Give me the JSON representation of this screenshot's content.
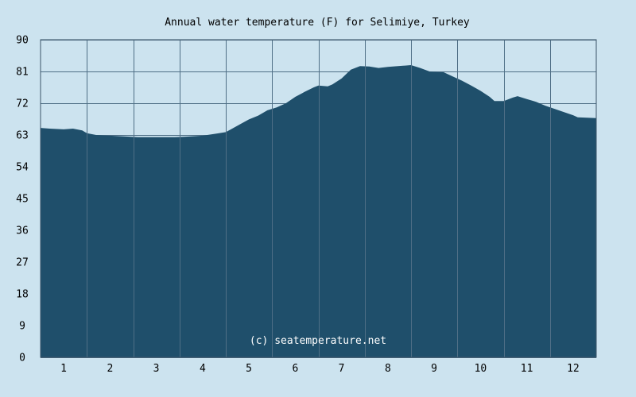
{
  "chart_data": {
    "type": "area",
    "title": "Annual water temperature (F) for Selimiye, Turkey",
    "watermark": "(c) seatemperature.net",
    "xlabel": "",
    "ylabel": "",
    "x_ticks": [
      "1",
      "2",
      "3",
      "4",
      "5",
      "6",
      "7",
      "8",
      "9",
      "10",
      "11",
      "12"
    ],
    "y_ticks": [
      "0",
      "9",
      "18",
      "27",
      "36",
      "45",
      "54",
      "63",
      "72",
      "81",
      "90"
    ],
    "xlim": [
      0.5,
      12.5
    ],
    "ylim": [
      0,
      90
    ],
    "grid": true,
    "legend": "none",
    "series": [
      {
        "x": [
          0.5,
          0.7,
          1.0,
          1.2,
          1.4,
          1.5,
          1.7,
          2.0,
          2.3,
          2.6,
          3.0,
          3.4,
          3.6,
          4.0,
          4.3,
          4.5,
          4.6,
          4.8,
          5.0,
          5.2,
          5.4,
          5.6,
          5.8,
          6.0,
          6.2,
          6.4,
          6.5,
          6.7,
          6.8,
          7.0,
          7.2,
          7.4,
          7.6,
          7.8,
          8.0,
          8.3,
          8.5,
          8.7,
          8.9,
          9.0,
          9.2,
          9.4,
          9.6,
          9.8,
          10.0,
          10.2,
          10.3,
          10.5,
          10.7,
          10.8,
          11.0,
          11.2,
          11.4,
          11.6,
          11.8,
          12.0,
          12.1,
          12.3,
          12.5
        ],
        "values": [
          65.0,
          64.8,
          64.6,
          64.8,
          64.3,
          63.5,
          63.0,
          62.8,
          62.6,
          62.4,
          62.4,
          62.4,
          62.5,
          62.8,
          63.4,
          63.8,
          64.5,
          66.0,
          67.4,
          68.5,
          70.0,
          70.8,
          72.0,
          73.8,
          75.2,
          76.5,
          77.0,
          76.8,
          77.3,
          79.0,
          81.5,
          82.5,
          82.4,
          82.0,
          82.3,
          82.6,
          82.8,
          82.0,
          81.0,
          80.9,
          80.8,
          79.6,
          78.4,
          77.0,
          75.5,
          73.8,
          72.6,
          72.6,
          73.6,
          74.0,
          73.2,
          72.4,
          71.3,
          70.4,
          69.5,
          68.6,
          68.0,
          67.9,
          67.8
        ]
      }
    ],
    "colors": {
      "background": "#cce3ef",
      "plot_background": "#cce3ef",
      "area_fill": "#1f4f6b",
      "grid": "#4f6f86",
      "axis": "#3b5568"
    }
  }
}
